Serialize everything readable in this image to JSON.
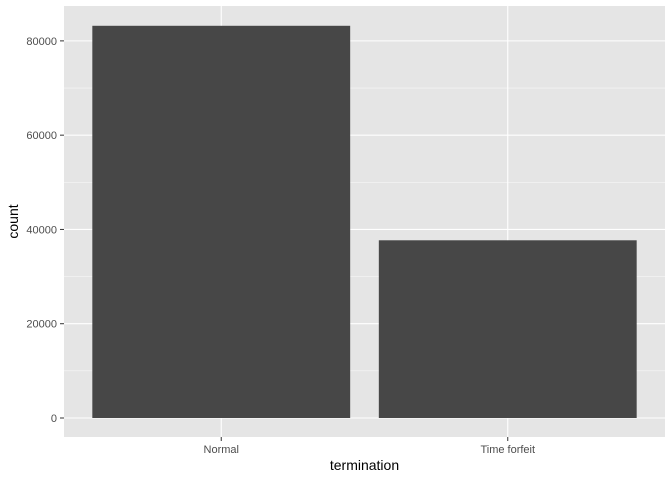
{
  "chart_data": {
    "type": "bar",
    "categories": [
      "Normal",
      "Time forfeit"
    ],
    "values": [
      83200,
      37700
    ],
    "title": "",
    "xlabel": "termination",
    "ylabel": "count",
    "ylim": [
      0,
      87400
    ],
    "yticks": [
      0,
      20000,
      40000,
      60000,
      80000
    ],
    "ytick_labels": [
      "0",
      "20000",
      "40000",
      "60000",
      "80000"
    ],
    "grid": true,
    "legend": "none",
    "colors": {
      "panel_background": "#e5e5e5",
      "grid_major": "#ffffff",
      "bar_fill": "#474747",
      "tick_text": "#4d4d4d",
      "tick_mark": "#333333"
    }
  }
}
